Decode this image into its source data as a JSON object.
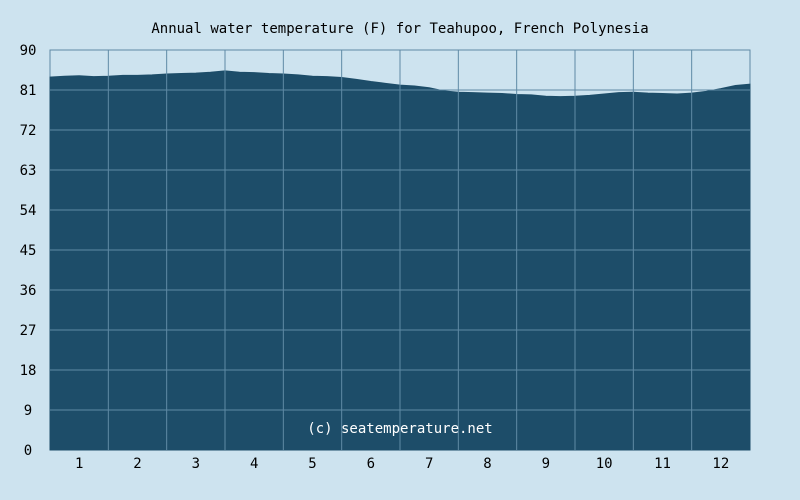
{
  "chart_data": {
    "type": "area",
    "title": "Annual water temperature (F) for Teahupoo, French Polynesia",
    "xlabel": "",
    "ylabel": "",
    "ylim": [
      0,
      90
    ],
    "y_ticks": [
      "0",
      "9",
      "18",
      "27",
      "36",
      "45",
      "54",
      "63",
      "72",
      "81",
      "90"
    ],
    "categories": [
      "1",
      "2",
      "3",
      "4",
      "5",
      "6",
      "7",
      "8",
      "9",
      "10",
      "11",
      "12"
    ],
    "x_positions": [
      0.5,
      1.5,
      2.5,
      3.5,
      4.5,
      5.5,
      6.5,
      7.5,
      8.5,
      9.5,
      10.5,
      11.5
    ],
    "x": [
      0,
      0.25,
      0.5,
      0.75,
      1,
      1.25,
      1.5,
      1.75,
      2,
      2.25,
      2.5,
      2.75,
      3,
      3.25,
      3.5,
      3.75,
      4,
      4.25,
      4.5,
      4.75,
      5,
      5.25,
      5.5,
      5.75,
      6,
      6.25,
      6.5,
      6.75,
      7,
      7.25,
      7.5,
      7.75,
      8,
      8.25,
      8.5,
      8.75,
      9,
      9.25,
      9.5,
      9.75,
      10,
      10.25,
      10.5,
      10.75,
      11,
      11.25,
      11.5,
      11.75,
      12
    ],
    "values": [
      83.9,
      84.1,
      84.2,
      84.0,
      84.1,
      84.3,
      84.3,
      84.4,
      84.6,
      84.7,
      84.8,
      85.0,
      85.3,
      85.0,
      84.9,
      84.7,
      84.6,
      84.4,
      84.1,
      84.0,
      83.8,
      83.4,
      82.9,
      82.5,
      82.1,
      81.9,
      81.5,
      80.8,
      80.5,
      80.4,
      80.3,
      80.2,
      80.0,
      79.9,
      79.6,
      79.5,
      79.6,
      79.8,
      80.1,
      80.4,
      80.5,
      80.3,
      80.2,
      80.1,
      80.3,
      80.7,
      81.3,
      82.0,
      82.3
    ],
    "colors": {
      "background": "#cde3ef",
      "area_fill": "#1d4d69",
      "grid": "#5f8aa5",
      "frame": "#5f8aa5"
    },
    "watermark": "(c) seatemperature.net",
    "grid": true
  }
}
